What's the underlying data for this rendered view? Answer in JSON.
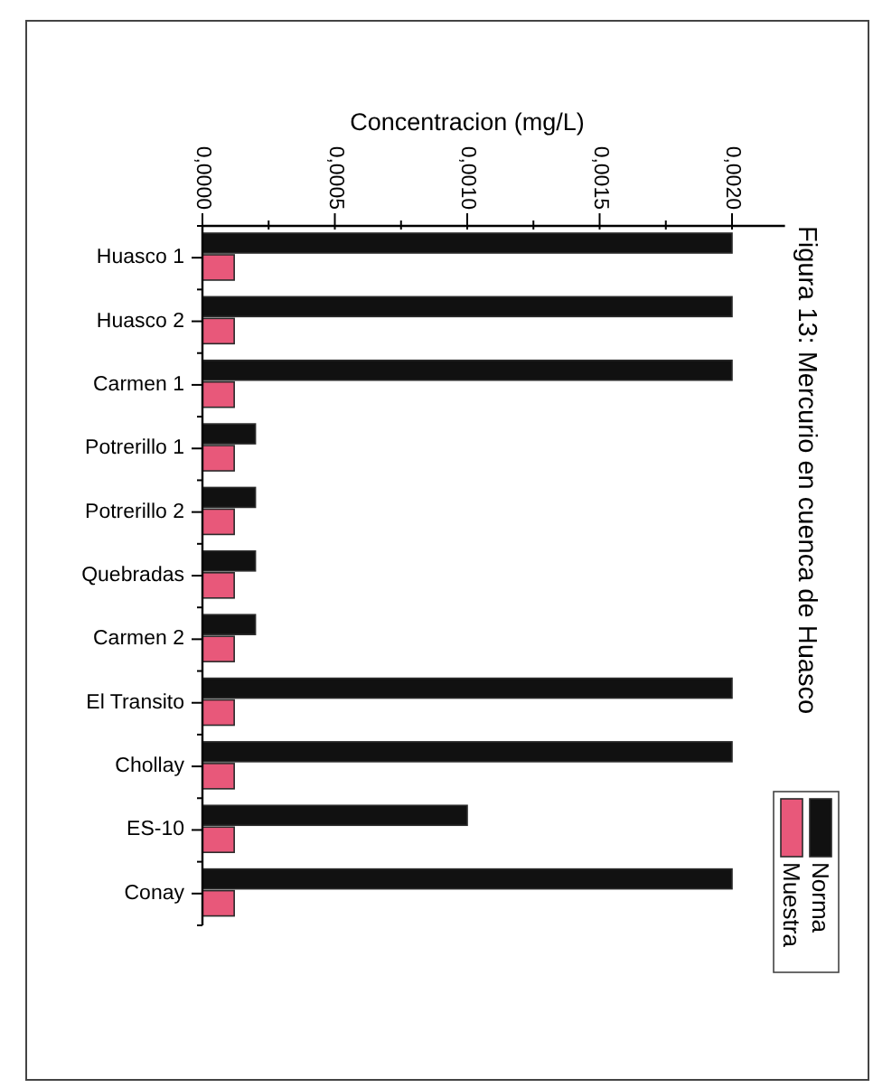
{
  "chart_data": {
    "type": "bar",
    "orientation": "horizontal",
    "title": "Figura 13: Mercurio en cuenca de Huasco",
    "xlabel": "Concentracion (mg/L)",
    "categories": [
      "Huasco 1",
      "Huasco 2",
      "Carmen 1",
      "Potrerillo 1",
      "Potrerillo 2",
      "Quebradas",
      "Carmen 2",
      "El Transito",
      "Chollay",
      "ES-10",
      "Conay"
    ],
    "series": [
      {
        "name": "Norma",
        "color": "#111111",
        "values": [
          0.002,
          0.002,
          0.002,
          0.0002,
          0.0002,
          0.0002,
          0.0002,
          0.002,
          0.002,
          0.001,
          0.002
        ]
      },
      {
        "name": "Muestra",
        "color": "#e8587a",
        "values": [
          0.00012,
          0.00012,
          0.00012,
          0.00012,
          0.00012,
          0.00012,
          0.00012,
          0.00012,
          0.00012,
          0.00012,
          0.00012
        ]
      }
    ],
    "xlim": [
      0,
      0.0022
    ],
    "xticks": [
      {
        "value": 0,
        "label": "0,0000"
      },
      {
        "value": 0.00025,
        "label": null
      },
      {
        "value": 0.0005,
        "label": "0,0005"
      },
      {
        "value": 0.00075,
        "label": null
      },
      {
        "value": 0.001,
        "label": "0,0010"
      },
      {
        "value": 0.00125,
        "label": null
      },
      {
        "value": 0.0015,
        "label": "0,0015"
      },
      {
        "value": 0.00175,
        "label": null
      },
      {
        "value": 0.002,
        "label": "0,0020"
      }
    ],
    "legend": "bottom right"
  }
}
